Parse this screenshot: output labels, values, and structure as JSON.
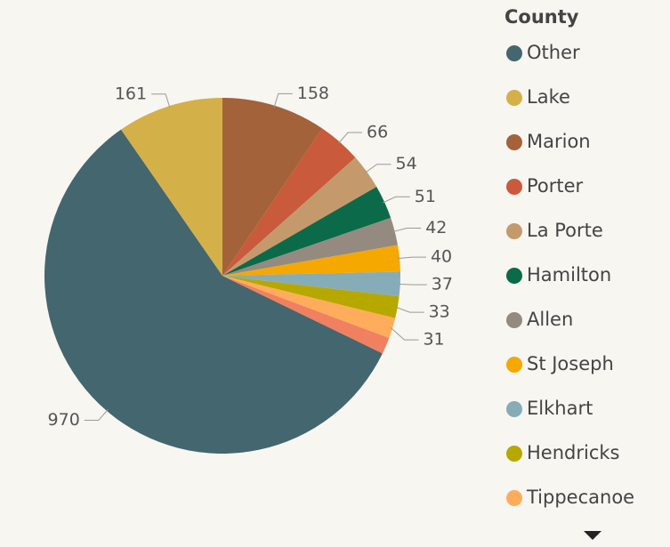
{
  "chart_data": {
    "type": "pie",
    "legend_title": "County",
    "categories": [
      "Other",
      "Lake",
      "Marion",
      "Porter",
      "La Porte",
      "Hamilton",
      "Allen",
      "St Joseph",
      "Elkhart",
      "Hendricks",
      "Tippecanoe",
      null
    ],
    "values": [
      970,
      161,
      158,
      66,
      54,
      51,
      42,
      40,
      37,
      33,
      31,
      25
    ],
    "colors": [
      "#43666f",
      "#d4b048",
      "#a3623a",
      "#c95a3b",
      "#c49a6c",
      "#0b6a4a",
      "#958a80",
      "#f5a800",
      "#86acb8",
      "#b7a800",
      "#ffad5c",
      "#f08060"
    ],
    "legend": "right"
  }
}
